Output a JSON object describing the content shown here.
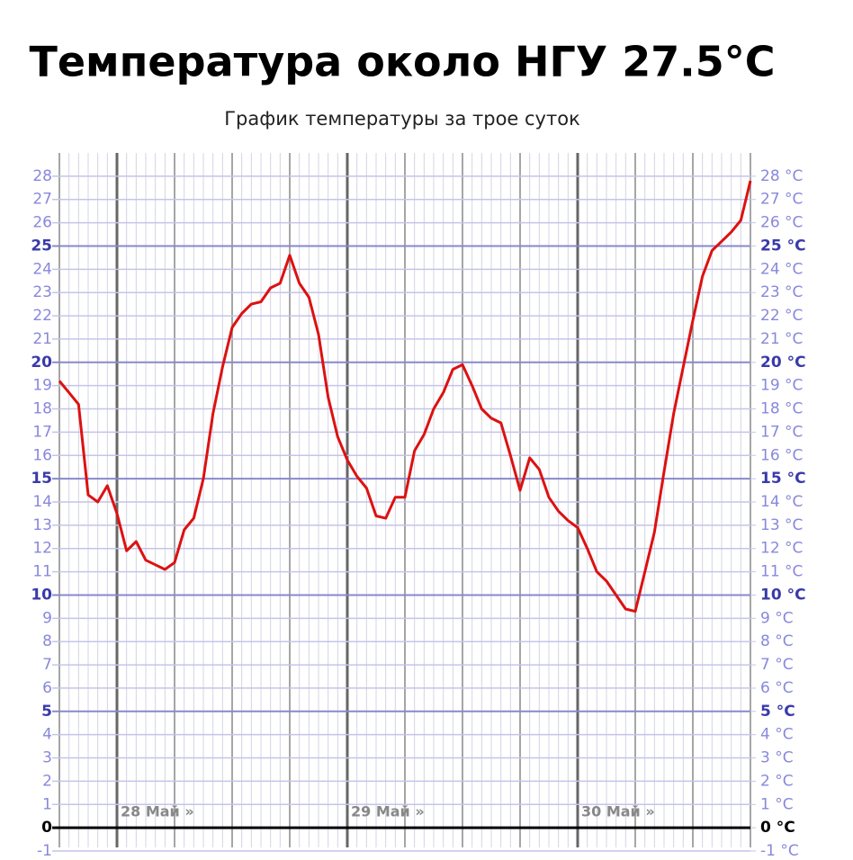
{
  "chart_data": {
    "type": "line",
    "title": "Температура около НГУ 27.5°C",
    "subtitle": "График температуры за трое суток",
    "x_labels": [
      "28 Май »",
      "29 Май »",
      "30 Май »"
    ],
    "color": "#dd1111",
    "values": [
      19.2,
      18.7,
      18.2,
      14.3,
      14.0,
      14.7,
      13.5,
      11.9,
      12.3,
      11.5,
      11.3,
      11.1,
      11.4,
      12.8,
      13.3,
      15.0,
      17.8,
      19.8,
      21.5,
      22.1,
      22.5,
      22.6,
      23.2,
      23.4,
      24.6,
      23.4,
      22.8,
      21.2,
      18.5,
      16.8,
      15.8,
      15.1,
      14.6,
      13.4,
      13.3,
      14.2,
      14.2,
      16.2,
      16.9,
      18.0,
      18.7,
      19.7,
      19.9,
      19.0,
      18.0,
      17.6,
      17.4,
      16.0,
      14.5,
      15.9,
      15.4,
      14.2,
      13.6,
      13.2,
      12.9,
      12.0,
      11.0,
      10.6,
      10.0,
      9.4,
      9.3,
      11.0,
      12.7,
      15.3,
      17.8,
      19.8,
      21.8,
      23.7,
      24.8,
      25.2,
      25.6,
      26.1,
      27.8
    ],
    "ylim": [
      -1,
      29
    ],
    "yticks": [
      -1,
      0,
      1,
      2,
      3,
      4,
      5,
      6,
      7,
      8,
      9,
      10,
      11,
      12,
      13,
      14,
      15,
      16,
      17,
      18,
      19,
      20,
      21,
      22,
      23,
      24,
      25,
      26,
      27,
      28
    ],
    "y2lim": [
      -1,
      29
    ],
    "y2ticks": [
      {
        "value": -1,
        "label": "-1 °C"
      },
      {
        "value": 0,
        "label": "0 °C"
      },
      {
        "value": 1,
        "label": "1 °C"
      },
      {
        "value": 2,
        "label": "2 °C"
      },
      {
        "value": 3,
        "label": "3 °C"
      },
      {
        "value": 4,
        "label": "4 °C"
      },
      {
        "value": 5,
        "label": "5 °C"
      },
      {
        "value": 6,
        "label": "6 °C"
      },
      {
        "value": 7,
        "label": "7 °C"
      },
      {
        "value": 8,
        "label": "8 °C"
      },
      {
        "value": 9,
        "label": "9 °C"
      },
      {
        "value": 10,
        "label": "10 °C"
      },
      {
        "value": 11,
        "label": "11 °C"
      },
      {
        "value": 12,
        "label": "12 °C"
      },
      {
        "value": 13,
        "label": "13 °C"
      },
      {
        "value": 14,
        "label": "14 °C"
      },
      {
        "value": 15,
        "label": "15 °C"
      },
      {
        "value": 16,
        "label": "16 °C"
      },
      {
        "value": 17,
        "label": "17 °C"
      },
      {
        "value": 18,
        "label": "18 °C"
      },
      {
        "value": 19,
        "label": "19 °C"
      },
      {
        "value": 20,
        "label": "20 °C"
      },
      {
        "value": 21,
        "label": "21 °C"
      },
      {
        "value": 22,
        "label": "22 °C"
      },
      {
        "value": 23,
        "label": "23 °C"
      },
      {
        "value": 24,
        "label": "24 °C"
      },
      {
        "value": 25,
        "label": "25 °C"
      },
      {
        "value": 26,
        "label": "26 °C"
      },
      {
        "value": 27,
        "label": "27 °C"
      },
      {
        "value": 28,
        "label": "28 °C"
      }
    ],
    "grid": true
  }
}
